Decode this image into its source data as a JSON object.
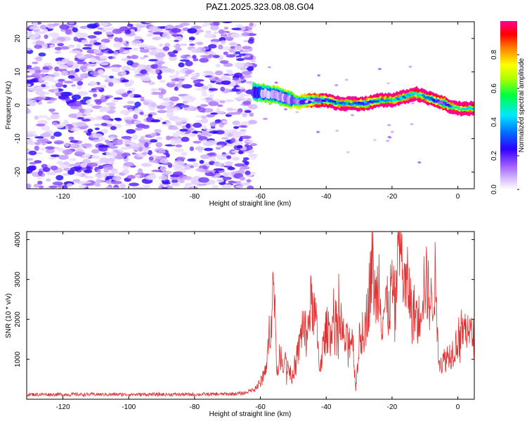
{
  "title": "PAZ1.2025.323.08.08.G04",
  "chart_data": [
    {
      "type": "heatmap",
      "name": "spectrogram",
      "xlabel": "Height of straight line (km)",
      "ylabel": "Frequency (Hz)",
      "xlim": [
        -131,
        5
      ],
      "ylim": [
        -25,
        25
      ],
      "xticks": [
        -120,
        -100,
        -80,
        -60,
        -40,
        -20,
        0
      ],
      "yticks": [
        -20,
        -10,
        0,
        10,
        20
      ],
      "noise_region_x": [
        -131,
        -62
      ],
      "noise_amplitude_range": [
        0.0,
        0.25
      ],
      "signal_track": {
        "x": [
          -62,
          -58,
          -55,
          -52,
          -48,
          -44,
          -40,
          -36,
          -32,
          -28,
          -24,
          -20,
          -16,
          -13,
          -10,
          -7,
          -4,
          -2,
          0,
          3,
          5
        ],
        "frequency": [
          4,
          3.5,
          3,
          2,
          1,
          1.5,
          1.5,
          0.5,
          0.5,
          0.5,
          1.5,
          1.5,
          2.5,
          3.5,
          2.5,
          1.5,
          0.5,
          -0.5,
          -1,
          -1,
          -1
        ],
        "amplitude": [
          0.25,
          0.3,
          0.3,
          0.35,
          0.4,
          0.55,
          0.7,
          0.8,
          0.85,
          0.65,
          0.8,
          0.85,
          0.8,
          0.9,
          0.85,
          0.7,
          0.6,
          0.85,
          0.95,
          0.9,
          0.8
        ]
      },
      "colorbar": {
        "label": "Normalized spectral amplitude",
        "range": [
          0,
          1
        ],
        "ticks": [
          "0.0",
          "0.2",
          "0.4",
          "0.6",
          "0.8"
        ],
        "colors": [
          "#ffffff",
          "#b070ff",
          "#5010e0",
          "#0000ff",
          "#00e0ff",
          "#00ff00",
          "#ffff00",
          "#ff8000",
          "#ff0000",
          "#ff0080"
        ]
      }
    },
    {
      "type": "line",
      "name": "snr",
      "xlabel": "Height of straight line (km)",
      "ylabel": "SNR (10 * v/v)",
      "xlim": [
        -131,
        5
      ],
      "ylim": [
        0,
        4200
      ],
      "xticks": [
        -120,
        -100,
        -80,
        -60,
        -40,
        -20,
        0
      ],
      "yticks": [
        1000,
        2000,
        3000,
        4000
      ],
      "color": "#e03030",
      "x": [
        -131,
        -120,
        -110,
        -100,
        -90,
        -80,
        -70,
        -65,
        -62,
        -60,
        -58,
        -57,
        -56,
        -55,
        -54,
        -52,
        -50,
        -48,
        -47,
        -46,
        -45,
        -44,
        -43,
        -42,
        -40,
        -38,
        -36,
        -34,
        -32,
        -31,
        -30,
        -28,
        -27,
        -26,
        -25,
        -24,
        -23,
        -22,
        -21,
        -20,
        -19,
        -18,
        -17,
        -16,
        -15,
        -14,
        -13,
        -12,
        -11,
        -10,
        -9,
        -8,
        -7,
        -6,
        -5,
        -4,
        -3,
        -2,
        -1,
        0,
        1,
        2,
        3,
        4,
        5
      ],
      "y": [
        120,
        120,
        120,
        120,
        120,
        120,
        130,
        150,
        250,
        400,
        900,
        1900,
        2900,
        700,
        1100,
        900,
        500,
        1400,
        2000,
        1300,
        2300,
        2400,
        1800,
        800,
        1700,
        1900,
        1800,
        1400,
        1600,
        300,
        1400,
        1900,
        2600,
        3500,
        2400,
        3100,
        2000,
        2400,
        2200,
        2900,
        2200,
        4100,
        3500,
        2700,
        2900,
        2100,
        2200,
        1900,
        2600,
        3000,
        2700,
        2300,
        3100,
        1200,
        900,
        1000,
        1100,
        1150,
        1300,
        1500,
        1700,
        1700,
        1900,
        1550,
        1600
      ]
    }
  ]
}
